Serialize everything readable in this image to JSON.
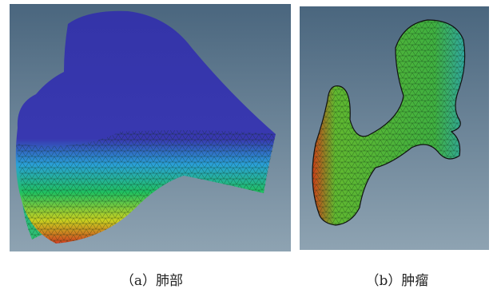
{
  "figure": {
    "panels": [
      {
        "caption": "（a）肺部"
      },
      {
        "caption": "（b）肿瘤"
      }
    ]
  }
}
